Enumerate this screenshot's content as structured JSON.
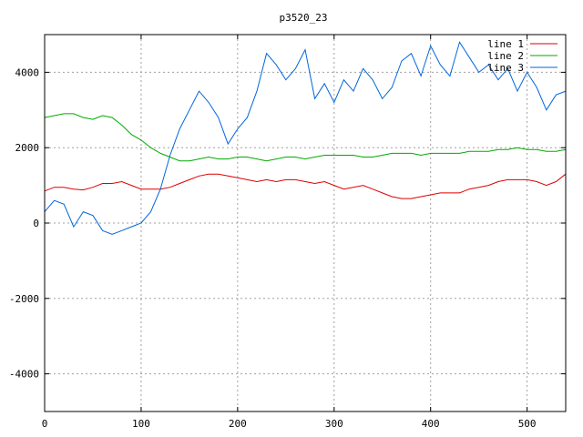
{
  "chart_data": {
    "type": "line",
    "title": "p3520_23",
    "xlabel": "",
    "ylabel": "",
    "xlim": [
      0,
      540
    ],
    "ylim": [
      -5000,
      5000
    ],
    "xticks": [
      0,
      100,
      200,
      300,
      400,
      500
    ],
    "yticks": [
      -4000,
      -2000,
      0,
      2000,
      4000
    ],
    "grid": true,
    "legend_position": "top-right",
    "series": [
      {
        "name": "line 1",
        "color": "#dd0000",
        "x": [
          0,
          10,
          20,
          30,
          40,
          50,
          60,
          70,
          80,
          90,
          100,
          110,
          120,
          130,
          140,
          150,
          160,
          170,
          180,
          190,
          200,
          210,
          220,
          230,
          240,
          250,
          260,
          270,
          280,
          290,
          300,
          310,
          320,
          330,
          340,
          350,
          360,
          370,
          380,
          390,
          400,
          410,
          420,
          430,
          440,
          450,
          460,
          470,
          480,
          490,
          500,
          510,
          520,
          530,
          540
        ],
        "y": [
          850,
          950,
          950,
          900,
          880,
          950,
          1050,
          1050,
          1100,
          1000,
          900,
          900,
          900,
          950,
          1050,
          1150,
          1250,
          1300,
          1300,
          1250,
          1200,
          1150,
          1100,
          1150,
          1100,
          1150,
          1150,
          1100,
          1050,
          1100,
          1000,
          900,
          950,
          1000,
          900,
          800,
          700,
          650,
          650,
          700,
          750,
          800,
          800,
          800,
          900,
          950,
          1000,
          1100,
          1150,
          1150,
          1150,
          1100,
          1000,
          1100,
          1300
        ]
      },
      {
        "name": "line 2",
        "color": "#00aa00",
        "x": [
          0,
          10,
          20,
          30,
          40,
          50,
          60,
          70,
          80,
          90,
          100,
          110,
          120,
          130,
          140,
          150,
          160,
          170,
          180,
          190,
          200,
          210,
          220,
          230,
          240,
          250,
          260,
          270,
          280,
          290,
          300,
          310,
          320,
          330,
          340,
          350,
          360,
          370,
          380,
          390,
          400,
          410,
          420,
          430,
          440,
          450,
          460,
          470,
          480,
          490,
          500,
          510,
          520,
          530,
          540
        ],
        "y": [
          2800,
          2850,
          2900,
          2900,
          2800,
          2750,
          2850,
          2800,
          2600,
          2350,
          2200,
          2000,
          1850,
          1750,
          1650,
          1650,
          1700,
          1750,
          1700,
          1700,
          1750,
          1750,
          1700,
          1650,
          1700,
          1750,
          1750,
          1700,
          1750,
          1800,
          1800,
          1800,
          1800,
          1750,
          1750,
          1800,
          1850,
          1850,
          1850,
          1800,
          1850,
          1850,
          1850,
          1850,
          1900,
          1900,
          1900,
          1950,
          1950,
          2000,
          1950,
          1950,
          1900,
          1900,
          1950
        ]
      },
      {
        "name": "line 3",
        "color": "#0066dd",
        "x": [
          0,
          10,
          20,
          30,
          40,
          50,
          60,
          70,
          80,
          90,
          100,
          110,
          120,
          130,
          140,
          150,
          160,
          170,
          180,
          190,
          200,
          210,
          220,
          230,
          240,
          250,
          260,
          270,
          280,
          290,
          300,
          310,
          320,
          330,
          340,
          350,
          360,
          370,
          380,
          390,
          400,
          410,
          420,
          430,
          440,
          450,
          460,
          470,
          480,
          490,
          500,
          510,
          520,
          530,
          540
        ],
        "y": [
          300,
          600,
          500,
          -100,
          300,
          200,
          -200,
          -300,
          -200,
          -100,
          0,
          300,
          900,
          1800,
          2500,
          3000,
          3500,
          3200,
          2800,
          2100,
          2500,
          2800,
          3500,
          4500,
          4200,
          3800,
          4100,
          4600,
          3300,
          3700,
          3200,
          3800,
          3500,
          4100,
          3800,
          3300,
          3600,
          4300,
          4500,
          3900,
          4700,
          4200,
          3900,
          4800,
          4400,
          4000,
          4200,
          3800,
          4100,
          3500,
          4000,
          3600,
          3000,
          3400,
          3500
        ]
      }
    ]
  }
}
